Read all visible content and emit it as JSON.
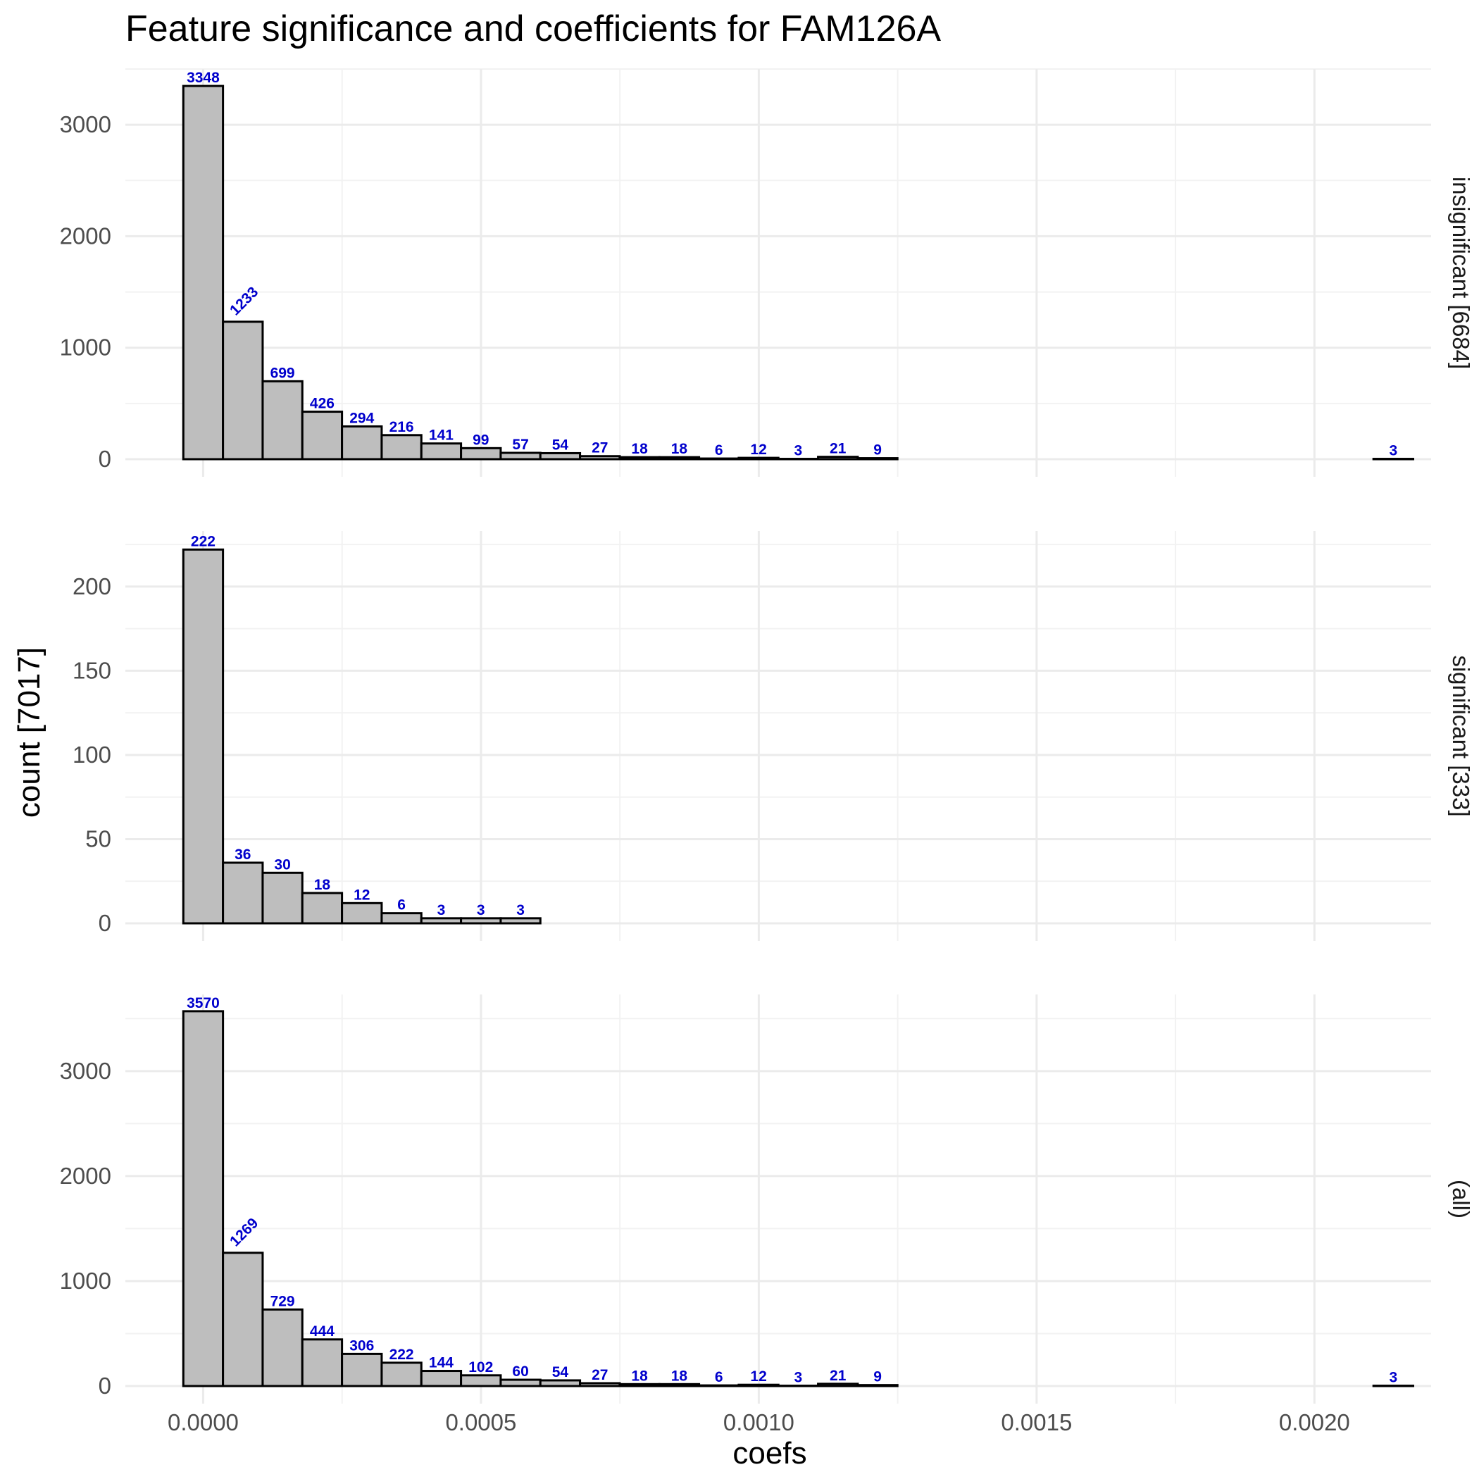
{
  "chart_data": {
    "type": "bar",
    "title": "Feature significance and coefficients for FAM126A",
    "xlabel": "coefs",
    "ylabel": "count [7017]",
    "xlim": [
      -0.00014,
      0.00221
    ],
    "x_ticks": [
      0,
      0.0005,
      0.001,
      0.0015,
      0.002
    ],
    "x_tick_labels": [
      "0.0000",
      "0.0005",
      "0.0010",
      "0.0015",
      "0.0020"
    ],
    "bin_width": 7.14e-05,
    "bin_start": -3.57e-05,
    "grid": true,
    "colors": {
      "bar_fill": "#bebebe",
      "bar_stroke": "#000000",
      "label": "#0000cc"
    },
    "panels": [
      {
        "strip": "insignificant [6684]",
        "ylim": [
          0,
          3500
        ],
        "y_ticks": [
          0,
          1000,
          2000,
          3000
        ],
        "y_tick_labels": [
          "0",
          "1000",
          "2000",
          "3000"
        ],
        "values": [
          3348,
          1233,
          699,
          426,
          294,
          216,
          141,
          99,
          57,
          54,
          27,
          18,
          18,
          6,
          12,
          3,
          21,
          9,
          0,
          0,
          0,
          0,
          0,
          0,
          0,
          0,
          0,
          0,
          0,
          0,
          3
        ],
        "rotated_label_bins": [
          1
        ]
      },
      {
        "strip": "significant [333]",
        "ylim": [
          0,
          233
        ],
        "y_ticks": [
          0,
          50,
          100,
          150,
          200
        ],
        "y_tick_labels": [
          "0",
          "50",
          "100",
          "150",
          "200"
        ],
        "values": [
          222,
          36,
          30,
          18,
          12,
          6,
          3,
          3,
          3,
          0,
          0,
          0,
          0,
          0,
          0,
          0,
          0,
          0,
          0,
          0,
          0,
          0,
          0,
          0,
          0,
          0,
          0,
          0,
          0,
          0,
          0
        ],
        "rotated_label_bins": []
      },
      {
        "strip": "(all)",
        "ylim": [
          0,
          3730
        ],
        "y_ticks": [
          0,
          1000,
          2000,
          3000
        ],
        "y_tick_labels": [
          "0",
          "1000",
          "2000",
          "3000"
        ],
        "values": [
          3570,
          1269,
          729,
          444,
          306,
          222,
          144,
          102,
          60,
          54,
          27,
          18,
          18,
          6,
          12,
          3,
          21,
          9,
          0,
          0,
          0,
          0,
          0,
          0,
          0,
          0,
          0,
          0,
          0,
          0,
          3
        ],
        "rotated_label_bins": [
          1
        ]
      }
    ]
  }
}
